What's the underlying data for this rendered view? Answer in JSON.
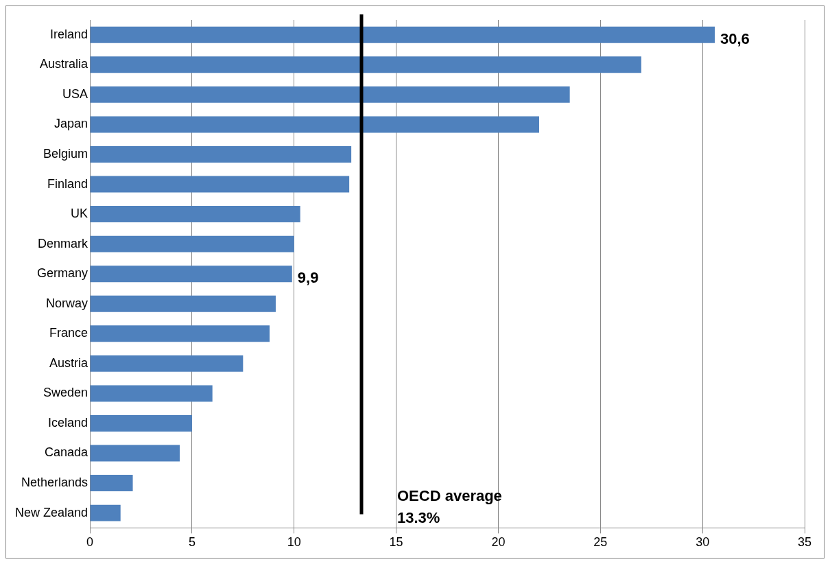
{
  "chart_data": {
    "type": "bar",
    "orientation": "horizontal",
    "categories": [
      "Ireland",
      "Australia",
      "USA",
      "Japan",
      "Belgium",
      "Finland",
      "UK",
      "Denmark",
      "Germany",
      "Norway",
      "France",
      "Austria",
      "Sweden",
      "Iceland",
      "Canada",
      "Netherlands",
      "New Zealand"
    ],
    "values": [
      30.6,
      27.0,
      23.5,
      22.0,
      12.8,
      12.7,
      10.3,
      10.0,
      9.9,
      9.1,
      8.8,
      7.5,
      6.0,
      5.0,
      4.4,
      2.1,
      1.5
    ],
    "value_labels": [
      "30,6",
      null,
      null,
      null,
      null,
      null,
      null,
      null,
      "9,9",
      null,
      null,
      null,
      null,
      null,
      null,
      null,
      null
    ],
    "color": "#4f81bd",
    "xlim": [
      0,
      35
    ],
    "xticks": [
      0,
      5,
      10,
      15,
      20,
      25,
      30,
      35
    ],
    "grid": "x",
    "legend": false,
    "ref_lines": [
      {
        "axis": "x",
        "value": 13.3,
        "label": "OECD average 13.3%",
        "color": "#000000"
      }
    ]
  }
}
